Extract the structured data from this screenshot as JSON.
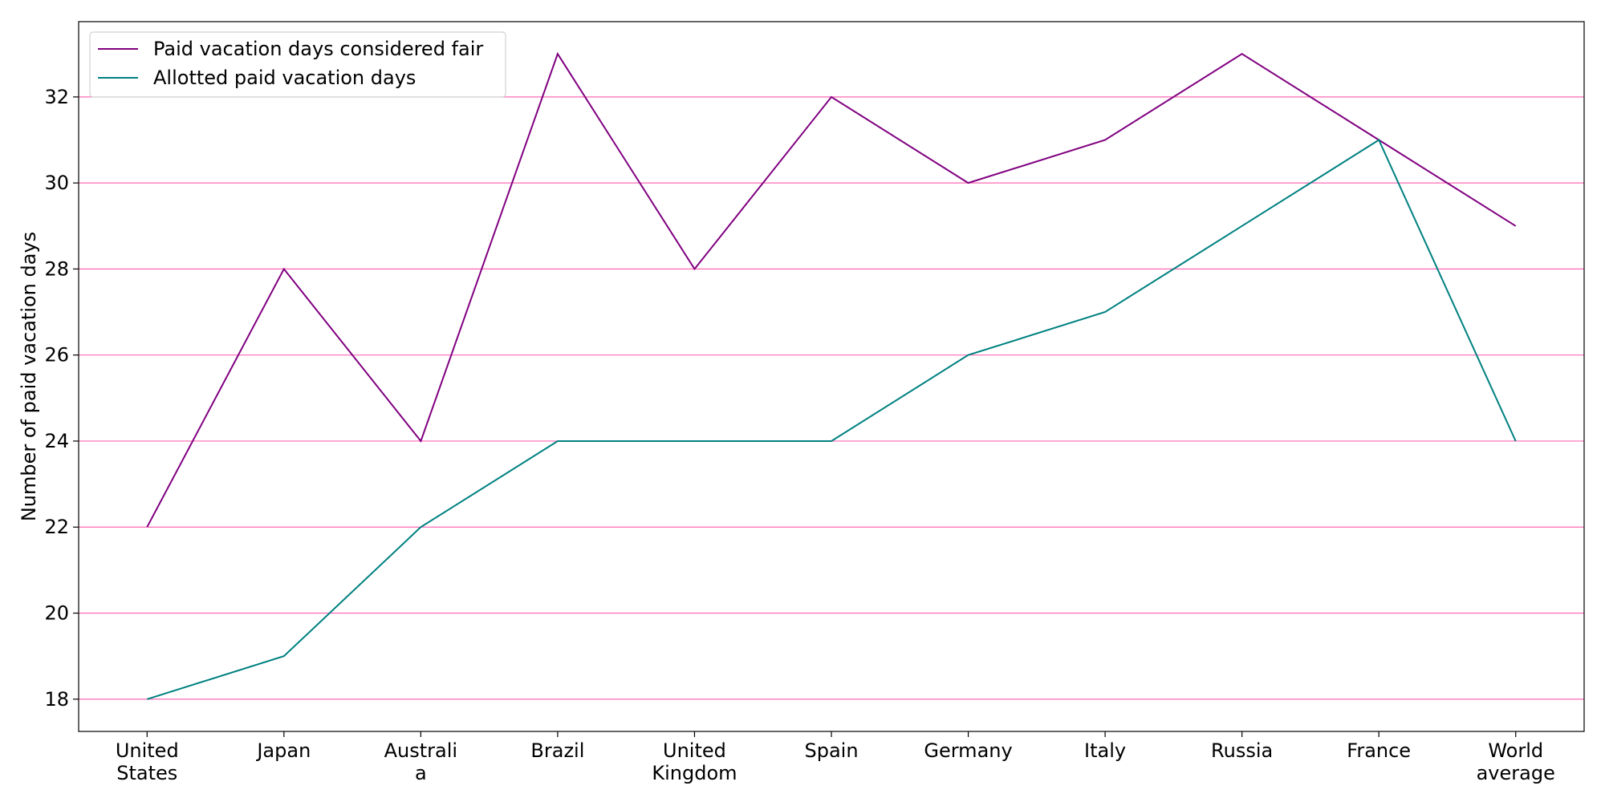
{
  "chart_data": {
    "type": "line",
    "title": "",
    "xlabel": "",
    "ylabel": "Number of paid vacation days",
    "categories": [
      [
        "United",
        "States"
      ],
      [
        "Japan"
      ],
      [
        "Australi",
        "a"
      ],
      [
        "Brazil"
      ],
      [
        "United",
        "Kingdom"
      ],
      [
        "Spain"
      ],
      [
        "Germany"
      ],
      [
        "Italy"
      ],
      [
        "Russia"
      ],
      [
        "France"
      ],
      [
        "World",
        "average"
      ]
    ],
    "series": [
      {
        "name": "Paid vacation days considered fair",
        "color": "#800080",
        "values": [
          22,
          28,
          24,
          33,
          28,
          32,
          30,
          31,
          33,
          31,
          29
        ]
      },
      {
        "name": "Allotted paid vacation days",
        "color": "#008080",
        "values": [
          18,
          19,
          22,
          24,
          24,
          24,
          26,
          27,
          29,
          31,
          24
        ]
      }
    ],
    "ylim": [
      17.25,
      33.75
    ],
    "yticks": [
      18,
      20,
      22,
      24,
      26,
      28,
      30,
      32
    ],
    "grid": {
      "axis": "y",
      "color": "#ff69b4"
    },
    "legend_position": "top-left"
  }
}
